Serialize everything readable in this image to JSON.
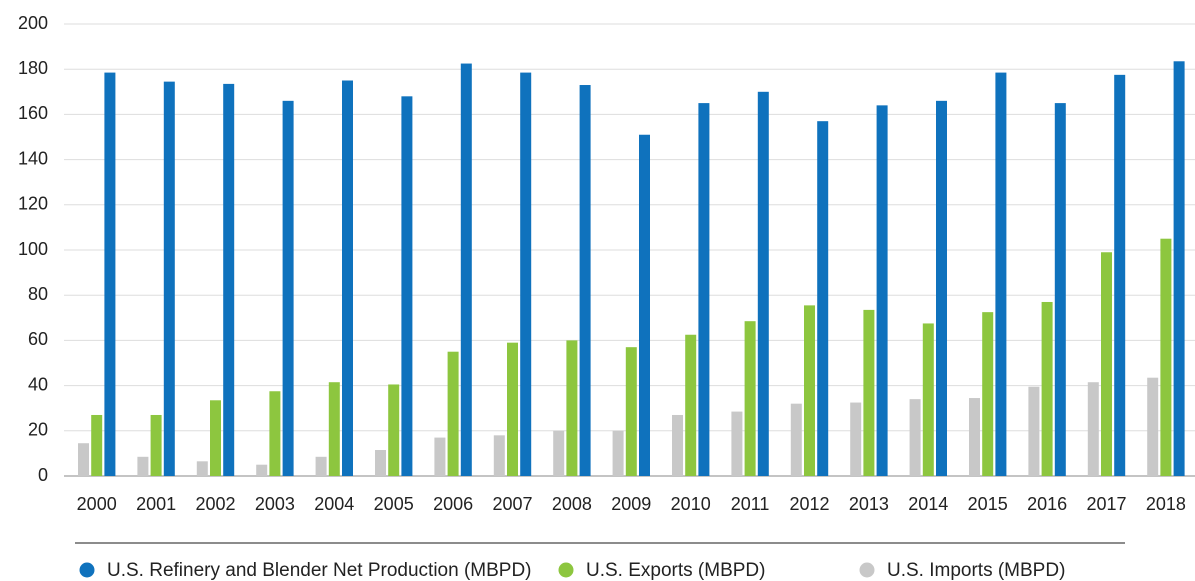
{
  "chart_data": {
    "type": "bar",
    "categories": [
      "2000",
      "2001",
      "2002",
      "2003",
      "2004",
      "2005",
      "2006",
      "2007",
      "2008",
      "2009",
      "2010",
      "2011",
      "2012",
      "2013",
      "2014",
      "2015",
      "2016",
      "2017",
      "2018"
    ],
    "series": [
      {
        "name": "U.S. Imports (MBPD)",
        "color": "#c8c8c8",
        "values": [
          14.5,
          8.5,
          6.5,
          5,
          8.5,
          11.5,
          17,
          18,
          20,
          20,
          27,
          28.5,
          32,
          32.5,
          34,
          34.5,
          39.5,
          41.5,
          43.5
        ]
      },
      {
        "name": "U.S. Exports (MBPD)",
        "color": "#8dc63f",
        "values": [
          27,
          27,
          33.5,
          37.5,
          41.5,
          40.5,
          55,
          59,
          60,
          57,
          62.5,
          68.5,
          75.5,
          73.5,
          67.5,
          72.5,
          77,
          99,
          105
        ]
      },
      {
        "name": "U.S. Refinery and Blender Net Production (MBPD)",
        "color": "#0f72bd",
        "values": [
          178.5,
          174.5,
          173.5,
          166,
          175,
          168,
          182.5,
          178.5,
          173,
          151,
          165,
          170,
          157,
          164,
          166,
          178.5,
          165,
          177.5,
          183.5
        ]
      }
    ],
    "legend_order": [
      2,
      1,
      0
    ],
    "ylim": [
      0,
      200
    ],
    "yticks": [
      0,
      20,
      40,
      60,
      80,
      100,
      120,
      140,
      160,
      180,
      200
    ],
    "grid": true,
    "legend": "bottom"
  }
}
